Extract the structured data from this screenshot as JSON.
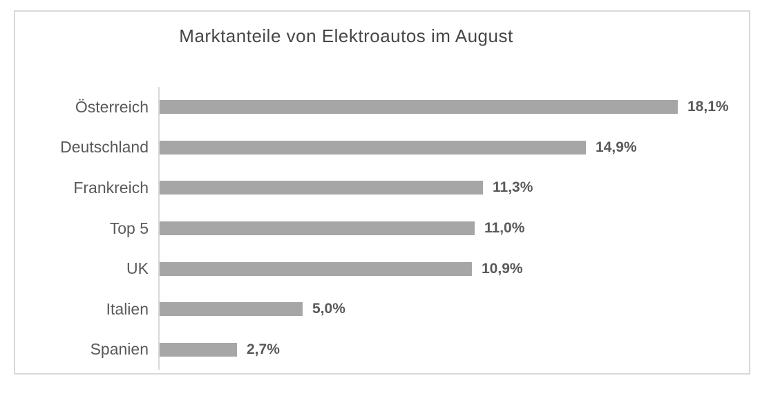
{
  "chart_data": {
    "type": "bar",
    "orientation": "horizontal",
    "title": "Marktanteile von Elektroautos im August",
    "categories": [
      "Österreich",
      "Deutschland",
      "Frankreich",
      "Top 5",
      "UK",
      "Italien",
      "Spanien"
    ],
    "values": [
      18.1,
      14.9,
      11.3,
      11.0,
      10.9,
      5.0,
      2.7
    ],
    "value_labels": [
      "18,1%",
      "14,9%",
      "11,3%",
      "11,0%",
      "10,9%",
      "5,0%",
      "2,7%"
    ],
    "unit": "%",
    "xlabel": "",
    "ylabel": "",
    "xlim": [
      0,
      20
    ],
    "grid": false,
    "legend": null,
    "colors": {
      "bar": "#a6a6a6",
      "category_label": "#595959",
      "value_label": "#595959",
      "title": "#474747",
      "axis_line": "#d9d9d9",
      "frame_border": "#d9d9d9",
      "background": "#ffffff"
    }
  }
}
